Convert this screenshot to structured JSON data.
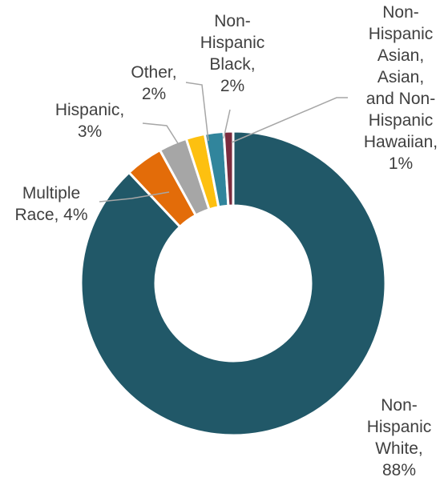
{
  "chart_data": {
    "type": "pie",
    "variant": "donut",
    "categories": [
      "Non-Hispanic White",
      "Multiple Race",
      "Hispanic",
      "Other",
      "Non-Hispanic Black",
      "Non-Hispanic Asian, Asian, and Non-Hispanic Hawaiian"
    ],
    "values": [
      88,
      4,
      3,
      2,
      2,
      1
    ],
    "labels": [
      {
        "lines": [
          "Non-",
          "Hispanic",
          "White,",
          "88%"
        ]
      },
      {
        "lines": [
          "Multiple",
          "Race, 4%"
        ]
      },
      {
        "lines": [
          "Hispanic,",
          "3%"
        ]
      },
      {
        "lines": [
          "Other,",
          "2%"
        ]
      },
      {
        "lines": [
          "Non-",
          "Hispanic",
          "Black,",
          "2%"
        ]
      },
      {
        "lines": [
          "Non-",
          "Hispanic",
          "Asian,",
          "Asian,",
          "and Non-",
          "Hispanic",
          "Hawaiian,",
          "1%"
        ]
      }
    ],
    "colors": [
      "#215868",
      "#e36c09",
      "#a6a6a6",
      "#fdc010",
      "#31859c",
      "#7b2c3f"
    ],
    "title": "",
    "legend": "none"
  }
}
